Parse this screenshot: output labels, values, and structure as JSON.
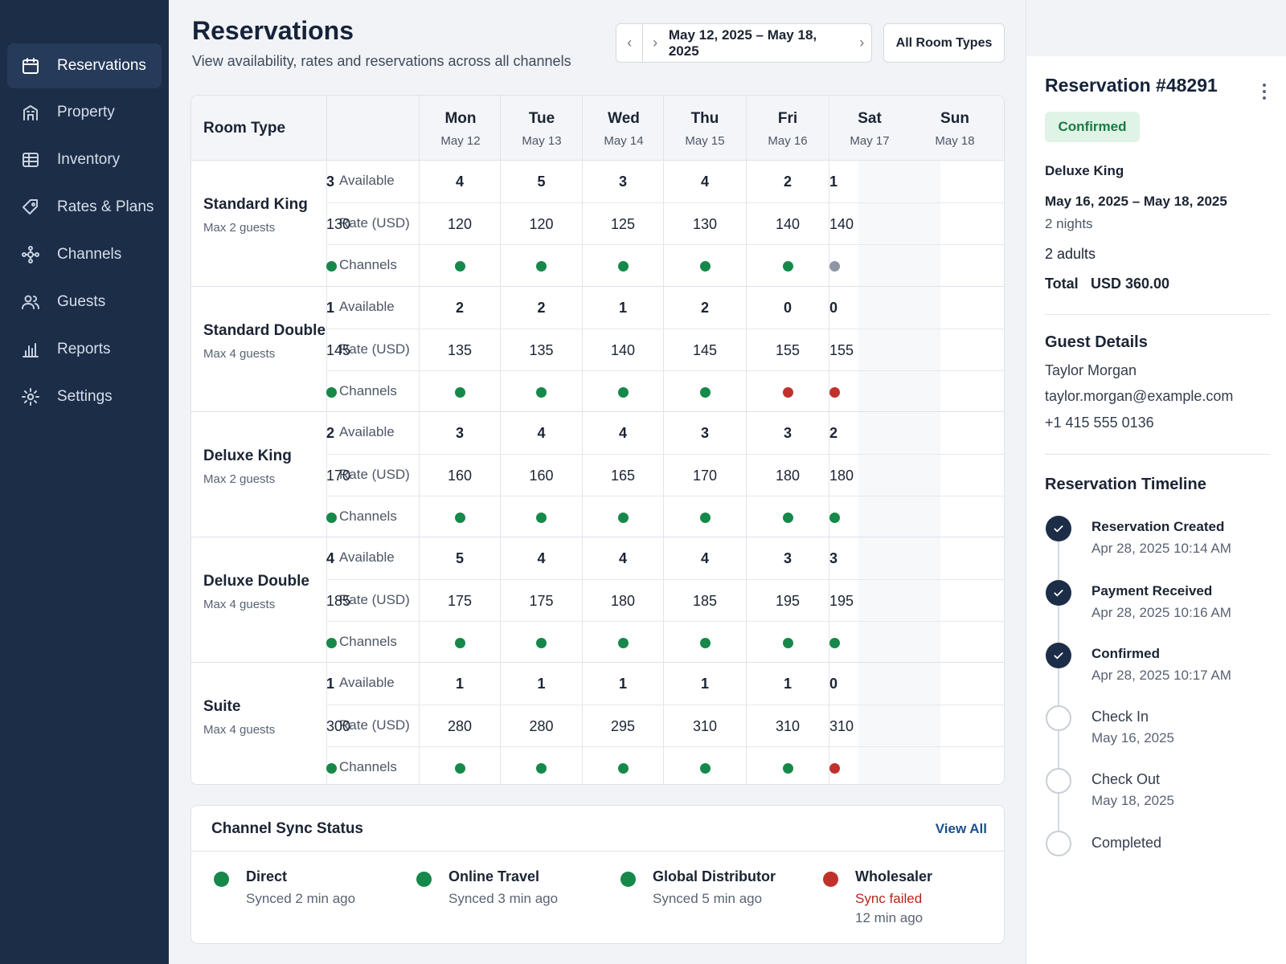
{
  "sidebar": {
    "items": [
      {
        "label": "Reservations",
        "icon": "calendar-icon"
      },
      {
        "label": "Property",
        "icon": "building-icon"
      },
      {
        "label": "Inventory",
        "icon": "inventory-icon"
      },
      {
        "label": "Rates & Plans",
        "icon": "tag-icon"
      },
      {
        "label": "Channels",
        "icon": "network-icon"
      },
      {
        "label": "Guests",
        "icon": "users-icon"
      },
      {
        "label": "Reports",
        "icon": "bar-chart-icon"
      },
      {
        "label": "Settings",
        "icon": "gear-icon"
      }
    ]
  },
  "header": {
    "title": "Reservations",
    "subtitle": "View availability, rates and reservations across all channels",
    "date_range": "May 12, 2025 – May 18, 2025",
    "room_filter": "All Room Types"
  },
  "grid": {
    "room_type_header": "Room Type",
    "days": [
      {
        "name": "Mon",
        "date": "May 12"
      },
      {
        "name": "Tue",
        "date": "May 13"
      },
      {
        "name": "Wed",
        "date": "May 14"
      },
      {
        "name": "Thu",
        "date": "May 15"
      },
      {
        "name": "Fri",
        "date": "May 16"
      },
      {
        "name": "Sat",
        "date": "May 17"
      },
      {
        "name": "Sun",
        "date": "May 18"
      }
    ],
    "metric_labels": {
      "available": "Available",
      "rate": "Rate (USD)",
      "channels": "Channels"
    },
    "rooms": [
      {
        "name": "Standard King",
        "guests": "Max 2 guests",
        "available": [
          "4",
          "5",
          "3",
          "4",
          "2",
          "1",
          "3"
        ],
        "rate": [
          "120",
          "120",
          "125",
          "130",
          "140",
          "140",
          "130"
        ],
        "channels": [
          "ok",
          "ok",
          "ok",
          "ok",
          "ok",
          "neutral",
          "ok"
        ]
      },
      {
        "name": "Standard Double",
        "guests": "Max 4 guests",
        "available": [
          "2",
          "2",
          "1",
          "2",
          "0",
          "0",
          "1"
        ],
        "rate": [
          "135",
          "135",
          "140",
          "145",
          "155",
          "155",
          "145"
        ],
        "channels": [
          "ok",
          "ok",
          "ok",
          "ok",
          "error",
          "error",
          "ok"
        ]
      },
      {
        "name": "Deluxe King",
        "guests": "Max 2 guests",
        "available": [
          "3",
          "4",
          "4",
          "3",
          "3",
          "2",
          "2"
        ],
        "rate": [
          "160",
          "160",
          "165",
          "170",
          "180",
          "180",
          "170"
        ],
        "channels": [
          "ok",
          "ok",
          "ok",
          "ok",
          "ok",
          "ok",
          "ok"
        ]
      },
      {
        "name": "Deluxe Double",
        "guests": "Max 4 guests",
        "available": [
          "5",
          "4",
          "4",
          "4",
          "3",
          "3",
          "4"
        ],
        "rate": [
          "175",
          "175",
          "180",
          "185",
          "195",
          "195",
          "185"
        ],
        "channels": [
          "ok",
          "ok",
          "ok",
          "ok",
          "ok",
          "ok",
          "ok"
        ]
      },
      {
        "name": "Suite",
        "guests": "Max 4 guests",
        "available": [
          "1",
          "1",
          "1",
          "1",
          "1",
          "0",
          "1"
        ],
        "rate": [
          "280",
          "280",
          "295",
          "310",
          "310",
          "310",
          "300"
        ],
        "channels": [
          "ok",
          "ok",
          "ok",
          "ok",
          "ok",
          "error",
          "ok"
        ]
      }
    ]
  },
  "status_colors": {
    "ok": "#16884a",
    "neutral": "#8e96a3",
    "error": "#c0312b"
  },
  "channel_sync": {
    "title": "Channel Sync Status",
    "view_all": "View All",
    "channels": [
      {
        "name": "Direct",
        "status": "Synced 2 min ago",
        "time": "",
        "state": "ok"
      },
      {
        "name": "Online Travel",
        "status": "Synced 3 min ago",
        "time": "",
        "state": "ok"
      },
      {
        "name": "Global Distributor",
        "status": "Synced 5 min ago",
        "time": "",
        "state": "ok"
      },
      {
        "name": "Wholesaler",
        "status": "Sync failed",
        "time": "12 min ago",
        "state": "error"
      }
    ]
  },
  "reservation": {
    "title": "Reservation #48291",
    "status": "Confirmed",
    "room": "Deluxe King",
    "dates": "May 16, 2025 – May 18, 2025",
    "nights": "2 nights",
    "adults": "2 adults",
    "total_label": "Total",
    "total": "USD 360.00",
    "guest_title": "Guest Details",
    "guest_name": "Taylor Morgan",
    "guest_email": "taylor.morgan@example.com",
    "guest_phone": "+1 415 555 0136",
    "timeline_title": "Reservation Timeline",
    "timeline": [
      {
        "label": "Reservation Created",
        "time": "Apr 28, 2025 10:14 AM",
        "done": true
      },
      {
        "label": "Payment Received",
        "time": "Apr 28, 2025 10:16 AM",
        "done": true
      },
      {
        "label": "Confirmed",
        "time": "Apr 28, 2025 10:17 AM",
        "done": true
      },
      {
        "label": "Check In",
        "time": "May 16, 2025",
        "done": false
      },
      {
        "label": "Check Out",
        "time": "May 18, 2025",
        "done": false
      },
      {
        "label": "Completed",
        "time": "",
        "done": false
      }
    ]
  }
}
